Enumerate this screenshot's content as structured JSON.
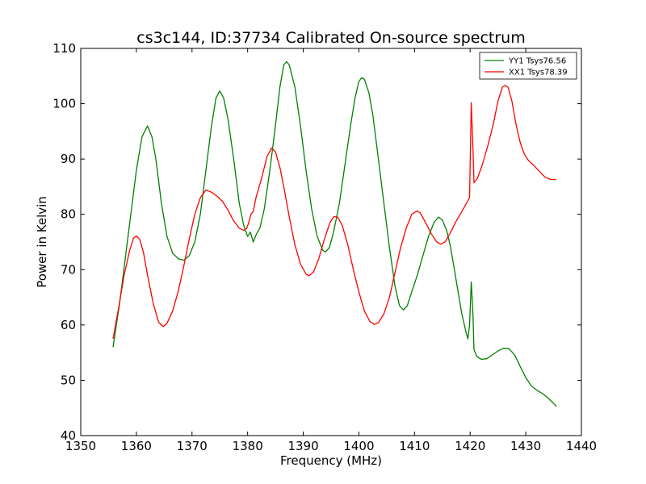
{
  "chart_data": {
    "type": "line",
    "title": "cs3c144, ID:37734 Calibrated On-source spectrum",
    "xlabel": "Frequency (MHz)",
    "ylabel": "Power in Kelvin",
    "xlim": [
      1350,
      1440
    ],
    "ylim": [
      40,
      110
    ],
    "xticks": [
      1350,
      1360,
      1370,
      1380,
      1390,
      1400,
      1410,
      1420,
      1430,
      1440
    ],
    "yticks": [
      40,
      50,
      60,
      70,
      80,
      90,
      100,
      110
    ],
    "grid": false,
    "legend_position": "top-right",
    "series": [
      {
        "name": "YY1 Tsys76.56",
        "color": "#008000",
        "points": [
          [
            1355.8,
            56.0
          ],
          [
            1357.0,
            64.0
          ],
          [
            1358.0,
            72.0
          ],
          [
            1359.0,
            80.0
          ],
          [
            1360.0,
            88.0
          ],
          [
            1361.0,
            94.0
          ],
          [
            1362.0,
            96.0
          ],
          [
            1362.8,
            94.0
          ],
          [
            1363.5,
            90.0
          ],
          [
            1364.5,
            82.0
          ],
          [
            1365.5,
            76.0
          ],
          [
            1366.5,
            73.0
          ],
          [
            1367.5,
            72.0
          ],
          [
            1368.5,
            71.7
          ],
          [
            1369.5,
            72.5
          ],
          [
            1370.5,
            75.0
          ],
          [
            1371.5,
            80.0
          ],
          [
            1372.5,
            88.0
          ],
          [
            1373.5,
            96.0
          ],
          [
            1374.3,
            101.0
          ],
          [
            1375.0,
            102.3
          ],
          [
            1375.7,
            101.0
          ],
          [
            1376.5,
            97.0
          ],
          [
            1377.5,
            90.0
          ],
          [
            1378.5,
            82.0
          ],
          [
            1379.3,
            78.0
          ],
          [
            1380.0,
            76.0
          ],
          [
            1380.5,
            76.8
          ],
          [
            1381.0,
            75.0
          ],
          [
            1381.6,
            76.5
          ],
          [
            1382.2,
            77.5
          ],
          [
            1383.0,
            81.0
          ],
          [
            1384.0,
            88.0
          ],
          [
            1385.0,
            96.0
          ],
          [
            1385.8,
            103.0
          ],
          [
            1386.5,
            107.0
          ],
          [
            1387.0,
            107.6
          ],
          [
            1387.5,
            107.0
          ],
          [
            1388.5,
            103.0
          ],
          [
            1389.5,
            96.0
          ],
          [
            1390.5,
            88.0
          ],
          [
            1391.5,
            81.0
          ],
          [
            1392.5,
            76.0
          ],
          [
            1393.5,
            73.5
          ],
          [
            1394.0,
            73.2
          ],
          [
            1394.7,
            74.0
          ],
          [
            1395.5,
            77.0
          ],
          [
            1396.5,
            82.0
          ],
          [
            1397.5,
            89.0
          ],
          [
            1398.5,
            96.0
          ],
          [
            1399.3,
            101.0
          ],
          [
            1400.0,
            104.0
          ],
          [
            1400.5,
            104.7
          ],
          [
            1401.0,
            104.4
          ],
          [
            1401.8,
            102.0
          ],
          [
            1402.5,
            98.0
          ],
          [
            1403.5,
            90.0
          ],
          [
            1404.5,
            82.0
          ],
          [
            1405.5,
            74.0
          ],
          [
            1406.5,
            67.0
          ],
          [
            1407.3,
            63.5
          ],
          [
            1408.0,
            62.7
          ],
          [
            1408.7,
            63.5
          ],
          [
            1409.5,
            66.0
          ],
          [
            1410.5,
            69.0
          ],
          [
            1411.5,
            72.5
          ],
          [
            1412.5,
            76.0
          ],
          [
            1413.5,
            78.5
          ],
          [
            1414.3,
            79.5
          ],
          [
            1415.0,
            79.0
          ],
          [
            1415.8,
            77.0
          ],
          [
            1416.5,
            74.0
          ],
          [
            1417.5,
            68.0
          ],
          [
            1418.5,
            62.0
          ],
          [
            1419.3,
            58.5
          ],
          [
            1419.6,
            57.5
          ],
          [
            1419.9,
            60.0
          ],
          [
            1420.2,
            67.8
          ],
          [
            1420.5,
            62.0
          ],
          [
            1420.7,
            55.5
          ],
          [
            1421.2,
            54.3
          ],
          [
            1422.0,
            53.8
          ],
          [
            1423.0,
            53.9
          ],
          [
            1424.0,
            54.6
          ],
          [
            1425.0,
            55.3
          ],
          [
            1426.0,
            55.8
          ],
          [
            1427.0,
            55.7
          ],
          [
            1428.0,
            54.6
          ],
          [
            1429.0,
            52.5
          ],
          [
            1430.0,
            50.5
          ],
          [
            1431.0,
            49.0
          ],
          [
            1432.0,
            48.2
          ],
          [
            1433.0,
            47.6
          ],
          [
            1434.0,
            46.8
          ],
          [
            1435.0,
            45.8
          ],
          [
            1435.5,
            45.3
          ]
        ]
      },
      {
        "name": "XX1 Tsys78.39",
        "color": "#ff0000",
        "points": [
          [
            1355.8,
            57.5
          ],
          [
            1356.8,
            63.0
          ],
          [
            1357.8,
            69.0
          ],
          [
            1358.8,
            73.5
          ],
          [
            1359.5,
            75.7
          ],
          [
            1360.0,
            76.1
          ],
          [
            1360.6,
            75.5
          ],
          [
            1361.3,
            73.0
          ],
          [
            1362.0,
            69.0
          ],
          [
            1363.0,
            64.0
          ],
          [
            1364.0,
            60.5
          ],
          [
            1364.8,
            59.7
          ],
          [
            1365.5,
            60.3
          ],
          [
            1366.5,
            62.5
          ],
          [
            1367.5,
            66.0
          ],
          [
            1368.5,
            70.5
          ],
          [
            1369.5,
            75.5
          ],
          [
            1370.5,
            80.0
          ],
          [
            1371.5,
            83.0
          ],
          [
            1372.5,
            84.4
          ],
          [
            1373.5,
            84.0
          ],
          [
            1374.5,
            83.3
          ],
          [
            1375.5,
            82.3
          ],
          [
            1376.5,
            80.7
          ],
          [
            1377.5,
            78.8
          ],
          [
            1378.5,
            77.5
          ],
          [
            1379.3,
            77.1
          ],
          [
            1379.8,
            77.4
          ],
          [
            1380.2,
            78.5
          ],
          [
            1380.6,
            80.0
          ],
          [
            1381.0,
            80.5
          ],
          [
            1381.5,
            83.0
          ],
          [
            1382.5,
            86.5
          ],
          [
            1383.5,
            90.5
          ],
          [
            1384.3,
            92.0
          ],
          [
            1385.0,
            91.3
          ],
          [
            1385.8,
            88.5
          ],
          [
            1386.5,
            85.0
          ],
          [
            1387.5,
            79.5
          ],
          [
            1388.5,
            74.5
          ],
          [
            1389.5,
            71.0
          ],
          [
            1390.5,
            69.2
          ],
          [
            1391.0,
            68.9
          ],
          [
            1391.8,
            69.5
          ],
          [
            1392.8,
            72.0
          ],
          [
            1393.8,
            75.5
          ],
          [
            1394.8,
            78.5
          ],
          [
            1395.5,
            79.6
          ],
          [
            1396.2,
            79.5
          ],
          [
            1397.0,
            78.0
          ],
          [
            1398.0,
            74.5
          ],
          [
            1399.0,
            70.0
          ],
          [
            1400.0,
            66.0
          ],
          [
            1401.0,
            62.5
          ],
          [
            1402.0,
            60.6
          ],
          [
            1402.8,
            60.1
          ],
          [
            1403.5,
            60.4
          ],
          [
            1404.5,
            62.0
          ],
          [
            1405.5,
            65.0
          ],
          [
            1406.5,
            69.5
          ],
          [
            1407.5,
            74.0
          ],
          [
            1408.5,
            77.5
          ],
          [
            1409.5,
            80.0
          ],
          [
            1410.4,
            80.6
          ],
          [
            1411.0,
            80.3
          ],
          [
            1412.0,
            78.5
          ],
          [
            1413.0,
            76.5
          ],
          [
            1414.0,
            75.0
          ],
          [
            1414.7,
            74.6
          ],
          [
            1415.5,
            75.0
          ],
          [
            1416.5,
            76.8
          ],
          [
            1417.5,
            78.8
          ],
          [
            1418.5,
            80.5
          ],
          [
            1419.5,
            82.3
          ],
          [
            1419.9,
            83.0
          ],
          [
            1420.2,
            100.2
          ],
          [
            1420.5,
            92.0
          ],
          [
            1420.7,
            85.7
          ],
          [
            1421.3,
            86.5
          ],
          [
            1422.2,
            89.0
          ],
          [
            1423.2,
            92.5
          ],
          [
            1424.2,
            96.5
          ],
          [
            1425.0,
            100.5
          ],
          [
            1425.8,
            103.0
          ],
          [
            1426.3,
            103.3
          ],
          [
            1426.8,
            103.0
          ],
          [
            1427.5,
            100.5
          ],
          [
            1428.3,
            96.0
          ],
          [
            1429.0,
            93.0
          ],
          [
            1429.7,
            91.0
          ],
          [
            1430.5,
            89.7
          ],
          [
            1431.5,
            88.8
          ],
          [
            1432.5,
            87.7
          ],
          [
            1433.5,
            86.7
          ],
          [
            1434.5,
            86.3
          ],
          [
            1435.5,
            86.3
          ]
        ]
      }
    ]
  }
}
